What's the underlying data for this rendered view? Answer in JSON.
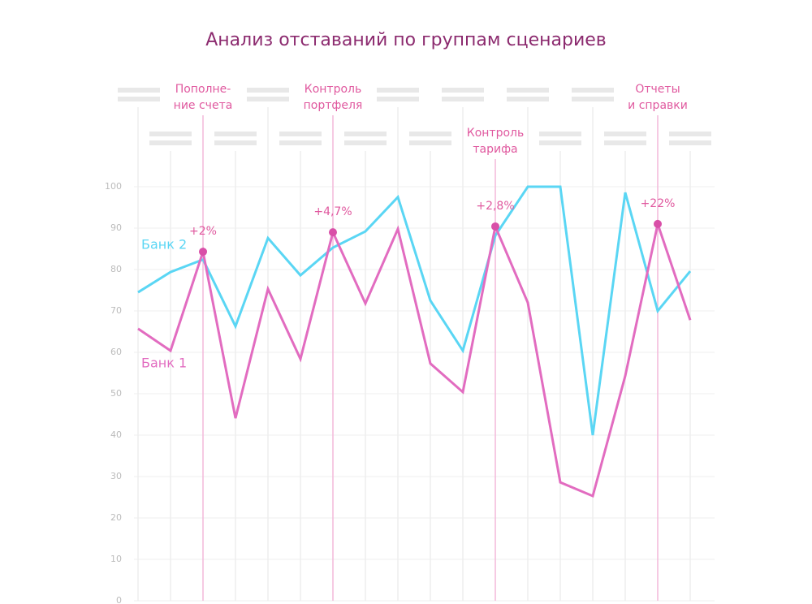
{
  "chart_data": {
    "type": "line",
    "title": "Анализ отставаний по группам сценариев",
    "categories": [
      null,
      null,
      null,
      null,
      null,
      null,
      null,
      null,
      null,
      null,
      null,
      null,
      null,
      null,
      null,
      null,
      null,
      null
    ],
    "series": [
      {
        "name": "Банк 2",
        "color": "#5ad6f4",
        "values": [
          74.5,
          79.4,
          82.4,
          66.3,
          87.6,
          78.6,
          85.3,
          89.2,
          97.5,
          72.5,
          60.4,
          88.2,
          100,
          100,
          40,
          98.6,
          70,
          79.6
        ]
      },
      {
        "name": "Банк 1",
        "color": "#e26cc0",
        "values": [
          65.7,
          60.4,
          84.3,
          44.1,
          75.3,
          58.4,
          89,
          71.8,
          89.8,
          57.3,
          50.4,
          90.4,
          72,
          28.6,
          25.3,
          54.3,
          91,
          67.8
        ]
      }
    ],
    "ylim": [
      0,
      100
    ],
    "yticks": [
      0,
      10,
      20,
      30,
      40,
      50,
      60,
      70,
      80,
      90,
      100
    ],
    "grid": true,
    "groups": [
      {
        "at": 2,
        "label": [
          "Пополне-",
          "ние счета"
        ],
        "delta": "+2%"
      },
      {
        "at": 6,
        "label": [
          "Контроль",
          "портфеля"
        ],
        "delta": "+4,7%"
      },
      {
        "at": 11,
        "label": [
          "Контроль",
          "тарифа"
        ],
        "delta": "+2,8%"
      },
      {
        "at": 16,
        "label": [
          "Отчеты",
          "и справки"
        ],
        "delta": "+22%"
      }
    ]
  }
}
